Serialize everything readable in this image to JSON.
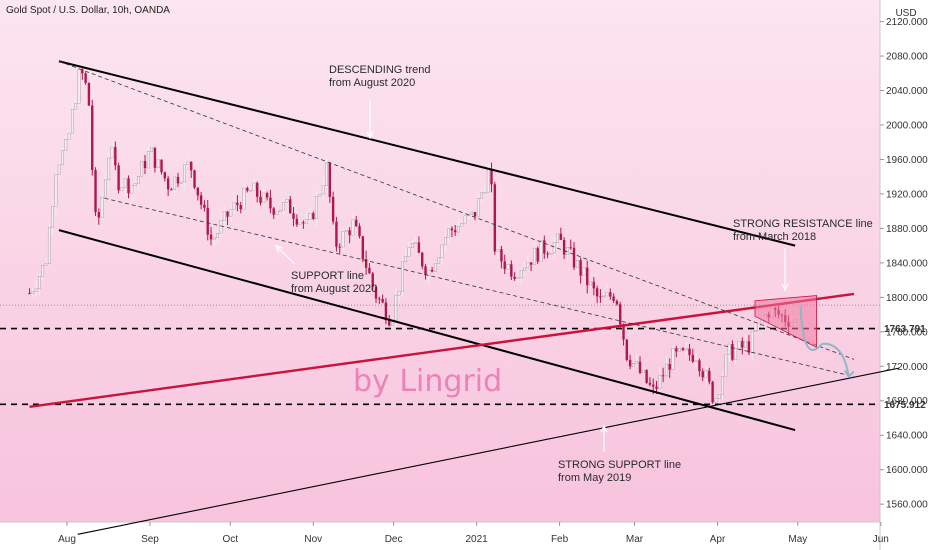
{
  "chart_data": {
    "type": "candlestick",
    "title": "Gold Spot / U.S. Dollar, 10h, OANDA",
    "currency": "USD",
    "watermark": "by Lingrid",
    "colors": {
      "up": "#f0eef0",
      "down": "#b01848",
      "resistance": "#c8143c",
      "line": "#000000"
    },
    "x_ticks": [
      "Aug",
      "Sep",
      "Oct",
      "Nov",
      "Dec",
      "2021",
      "Feb",
      "Mar",
      "Apr",
      "May",
      "Jun"
    ],
    "y_ticks": [
      "2120.000",
      "2080.000",
      "2040.000",
      "2000.000",
      "1960.000",
      "1920.000",
      "1880.000",
      "1840.000",
      "1800.000",
      "1760.000",
      "1720.000",
      "1680.000",
      "1640.000",
      "1600.000",
      "1560.000"
    ],
    "ylim": [
      1520,
      2135
    ],
    "horizontal_levels": [
      {
        "value": 1763.791,
        "label": "1763.791"
      },
      {
        "value": 1675.912,
        "label": "1675.912"
      }
    ],
    "trendlines": [
      {
        "name": "descending-upper",
        "from": [
          "2020-07-29",
          2074
        ],
        "to": [
          "2021-04-30",
          1860
        ]
      },
      {
        "name": "descending-lower",
        "from": [
          "2020-07-29",
          1878
        ],
        "to": [
          "2021-04-30",
          1646
        ]
      },
      {
        "name": "strong-resistance",
        "from": [
          "2020-07-18",
          1673
        ],
        "to": [
          "2021-05-22",
          1804
        ]
      },
      {
        "name": "strong-support",
        "from": [
          "2020-08-05",
          1525
        ],
        "to": [
          "2021-06-08",
          1718
        ]
      }
    ],
    "annotations": [
      {
        "lines": [
          "DESCENDING trend",
          "from August 2020"
        ]
      },
      {
        "lines": [
          "SUPPORT line",
          "from August 2020"
        ]
      },
      {
        "lines": [
          "STRONG RESISTANCE line",
          "from March 2018"
        ]
      },
      {
        "lines": [
          "STRONG SUPPORT line",
          "from May 2019"
        ]
      }
    ],
    "series": [
      {
        "date": "2020-07-18",
        "close": 1805
      },
      {
        "date": "2020-07-24",
        "close": 1840
      },
      {
        "date": "2020-07-28",
        "close": 1955
      },
      {
        "date": "2020-08-01",
        "close": 1975
      },
      {
        "date": "2020-08-04",
        "close": 2030
      },
      {
        "date": "2020-08-06",
        "close": 2065
      },
      {
        "date": "2020-08-09",
        "close": 2035
      },
      {
        "date": "2020-08-11",
        "close": 1915
      },
      {
        "date": "2020-08-12",
        "close": 1875
      },
      {
        "date": "2020-08-17",
        "close": 1975
      },
      {
        "date": "2020-08-20",
        "close": 1935
      },
      {
        "date": "2020-08-26",
        "close": 1930
      },
      {
        "date": "2020-09-01",
        "close": 1970
      },
      {
        "date": "2020-09-08",
        "close": 1930
      },
      {
        "date": "2020-09-16",
        "close": 1955
      },
      {
        "date": "2020-09-24",
        "close": 1865
      },
      {
        "date": "2020-10-01",
        "close": 1900
      },
      {
        "date": "2020-10-09",
        "close": 1925
      },
      {
        "date": "2020-10-16",
        "close": 1905
      },
      {
        "date": "2020-10-23",
        "close": 1905
      },
      {
        "date": "2020-10-30",
        "close": 1880
      },
      {
        "date": "2020-11-06",
        "close": 1950
      },
      {
        "date": "2020-11-09",
        "close": 1860
      },
      {
        "date": "2020-11-16",
        "close": 1885
      },
      {
        "date": "2020-11-24",
        "close": 1805
      },
      {
        "date": "2020-11-30",
        "close": 1775
      },
      {
        "date": "2020-12-07",
        "close": 1865
      },
      {
        "date": "2020-12-14",
        "close": 1830
      },
      {
        "date": "2020-12-21",
        "close": 1875
      },
      {
        "date": "2020-12-31",
        "close": 1895
      },
      {
        "date": "2021-01-06",
        "close": 1950
      },
      {
        "date": "2021-01-08",
        "close": 1850
      },
      {
        "date": "2021-01-15",
        "close": 1830
      },
      {
        "date": "2021-01-25",
        "close": 1855
      },
      {
        "date": "2021-02-01",
        "close": 1865
      },
      {
        "date": "2021-02-08",
        "close": 1835
      },
      {
        "date": "2021-02-16",
        "close": 1795
      },
      {
        "date": "2021-02-22",
        "close": 1805
      },
      {
        "date": "2021-02-26",
        "close": 1735
      },
      {
        "date": "2021-03-08",
        "close": 1690
      },
      {
        "date": "2021-03-15",
        "close": 1730
      },
      {
        "date": "2021-03-24",
        "close": 1735
      },
      {
        "date": "2021-03-31",
        "close": 1680
      },
      {
        "date": "2021-04-05",
        "close": 1735
      },
      {
        "date": "2021-04-13",
        "close": 1745
      },
      {
        "date": "2021-04-20",
        "close": 1785
      },
      {
        "date": "2021-04-27",
        "close": 1775
      },
      {
        "date": "2021-05-01",
        "close": 1770
      }
    ]
  }
}
